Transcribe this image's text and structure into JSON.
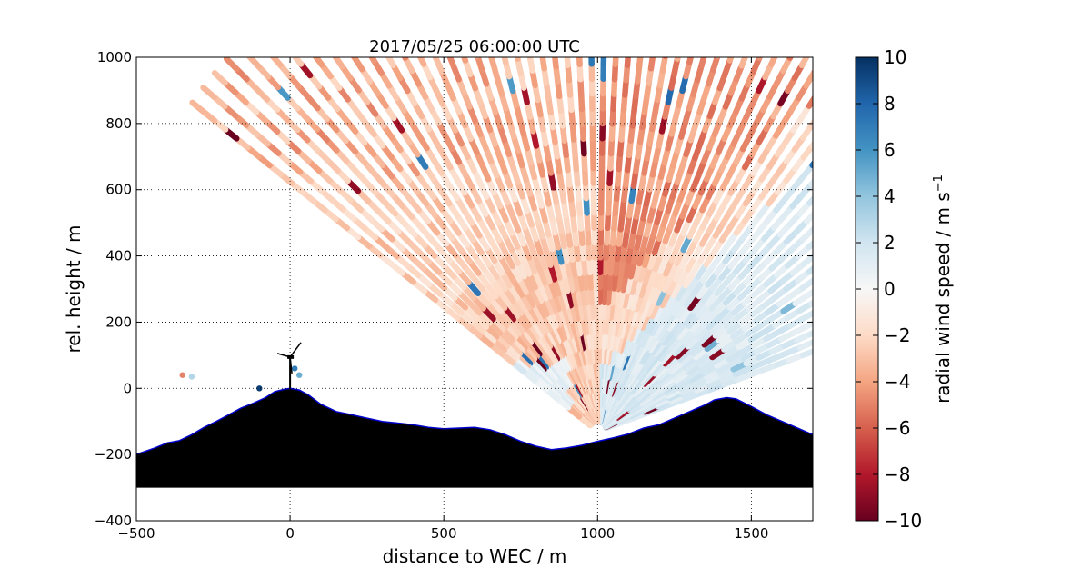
{
  "chart_data": {
    "type": "heatmap",
    "title": "2017/05/25 06:00:00 UTC",
    "xlabel": "distance to WEC / m",
    "ylabel": "rel. height / m",
    "xlim": [
      -500,
      1700
    ],
    "ylim": [
      -400,
      1000
    ],
    "x_ticks": [
      -500,
      0,
      500,
      1000,
      1500
    ],
    "y_ticks": [
      -400,
      -200,
      0,
      200,
      400,
      600,
      800,
      1000
    ],
    "x_tick_labels": [
      "−500",
      "0",
      "500",
      "1000",
      "1500"
    ],
    "y_tick_labels": [
      "−400",
      "−200",
      "0",
      "200",
      "400",
      "600",
      "800",
      "1000"
    ],
    "grid": true,
    "scan": {
      "origin": [
        1000,
        -130
      ],
      "angle_min_deg": 19,
      "angle_max_deg": 143,
      "beam_step_deg": 2,
      "range_max_m": 1650
    },
    "wind_fields": {
      "upper_band_mean": -3.5,
      "middle_band_mean": -2.5,
      "near_ground_left_mean": 1.0,
      "right_sector_mean": 1.5,
      "right_sector_upper_mean": -4.5
    },
    "terrain": {
      "x": [
        -500,
        -470,
        -440,
        -400,
        -360,
        -320,
        -280,
        -240,
        -200,
        -160,
        -120,
        -80,
        -50,
        -20,
        0,
        30,
        60,
        100,
        150,
        200,
        250,
        300,
        350,
        400,
        450,
        500,
        550,
        600,
        650,
        700,
        750,
        800,
        850,
        900,
        950,
        1000,
        1050,
        1100,
        1150,
        1200,
        1250,
        1300,
        1350,
        1380,
        1420,
        1450,
        1500,
        1550,
        1600,
        1650,
        1700
      ],
      "y": [
        -200,
        -190,
        -180,
        -165,
        -158,
        -140,
        -118,
        -100,
        -80,
        -60,
        -45,
        -28,
        -10,
        -3,
        0,
        -5,
        -20,
        -48,
        -70,
        -80,
        -90,
        -100,
        -105,
        -110,
        -118,
        -122,
        -120,
        -118,
        -125,
        -140,
        -160,
        -175,
        -185,
        -180,
        -172,
        -160,
        -150,
        -138,
        -120,
        -110,
        -90,
        -70,
        -50,
        -35,
        -28,
        -32,
        -55,
        -80,
        -100,
        -120,
        -140
      ],
      "base": -300,
      "outline_color": "#0000cc",
      "fill_color": "#000000"
    },
    "turbine": {
      "x": 0,
      "hub_height": 100
    },
    "colorbar": {
      "label": "radial wind speed / m s",
      "label_superscript": "−1",
      "min": -10,
      "max": 10,
      "ticks": [
        10,
        8,
        6,
        4,
        2,
        0,
        -2,
        -4,
        -6,
        -8,
        -10
      ],
      "tick_labels": [
        "10",
        "8",
        "6",
        "4",
        "2",
        "0",
        "−2",
        "−4",
        "−6",
        "−8",
        "−10"
      ],
      "colormap": "RdBu"
    }
  }
}
